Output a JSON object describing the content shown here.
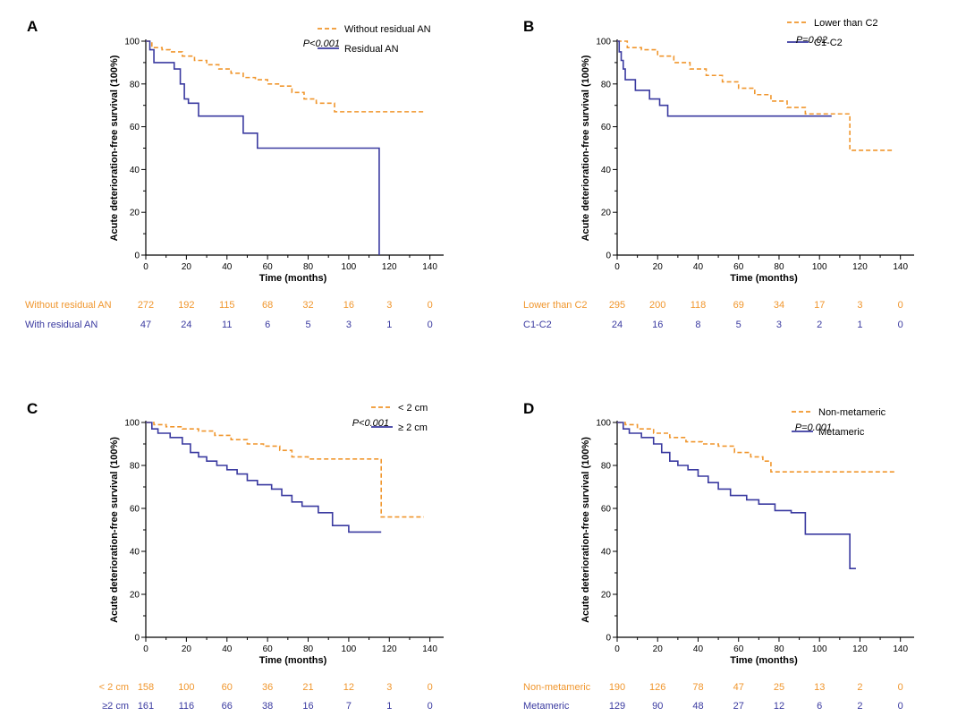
{
  "colors": {
    "orange": "#f0962d",
    "blue": "#3a3aa0",
    "axis": "#000000"
  },
  "chart_data": [
    {
      "panel": "A",
      "type": "line",
      "xlabel": "Time (months)",
      "ylabel": "Acute deterioration-free survival (100%)",
      "xlim": [
        0,
        145
      ],
      "ylim": [
        0,
        100
      ],
      "xticks": [
        0,
        20,
        40,
        60,
        80,
        100,
        120,
        140
      ],
      "yticks": [
        0,
        20,
        40,
        60,
        80,
        100
      ],
      "pvalue": "P<0.001",
      "series": [
        {
          "name": "Without residual AN",
          "color": "#f0962d",
          "dashed": true,
          "x": [
            0,
            3,
            8,
            12,
            18,
            24,
            30,
            36,
            42,
            48,
            54,
            60,
            66,
            72,
            78,
            84,
            93,
            100,
            137
          ],
          "y": [
            100,
            97,
            96,
            95,
            93,
            91,
            89,
            87,
            85,
            83,
            82,
            80,
            79,
            76,
            73,
            71,
            67,
            67,
            67
          ]
        },
        {
          "name": "Residual AN",
          "color": "#3a3aa0",
          "dashed": false,
          "x": [
            0,
            2,
            4,
            14,
            17,
            19,
            21,
            26,
            48,
            55,
            115,
            115
          ],
          "y": [
            100,
            96,
            90,
            87,
            80,
            73,
            71,
            65,
            57,
            50,
            50,
            0
          ]
        }
      ],
      "risk_table": [
        {
          "label": "Without residual AN",
          "color": "#f0962d",
          "values": [
            "272",
            "192",
            "115",
            "68",
            "32",
            "16",
            "3",
            "0"
          ]
        },
        {
          "label": "With residual AN",
          "color": "#3a3aa0",
          "values": [
            "47",
            "24",
            "11",
            "6",
            "5",
            "3",
            "1",
            "0"
          ]
        }
      ]
    },
    {
      "panel": "B",
      "type": "line",
      "xlabel": "Time (months)",
      "ylabel": "Acute deterioration-free survival (100%)",
      "xlim": [
        0,
        145
      ],
      "ylim": [
        0,
        100
      ],
      "xticks": [
        0,
        20,
        40,
        60,
        80,
        100,
        120,
        140
      ],
      "yticks": [
        0,
        20,
        40,
        60,
        80,
        100
      ],
      "pvalue": "P=0.02",
      "series": [
        {
          "name": "Lower than C2",
          "color": "#f0962d",
          "dashed": true,
          "x": [
            0,
            5,
            12,
            20,
            28,
            36,
            44,
            52,
            60,
            68,
            76,
            84,
            93,
            100,
            115,
            115,
            137
          ],
          "y": [
            100,
            97,
            96,
            93,
            90,
            87,
            84,
            81,
            78,
            75,
            72,
            69,
            66,
            66,
            66,
            49,
            49
          ]
        },
        {
          "name": "C1-C2",
          "color": "#3a3aa0",
          "dashed": false,
          "x": [
            0,
            1,
            2,
            3,
            4,
            9,
            16,
            21,
            25,
            106
          ],
          "y": [
            100,
            95,
            91,
            87,
            82,
            77,
            73,
            70,
            65,
            65
          ]
        }
      ],
      "risk_table": [
        {
          "label": "Lower than C2",
          "color": "#f0962d",
          "values": [
            "295",
            "200",
            "118",
            "69",
            "34",
            "17",
            "3",
            "0"
          ]
        },
        {
          "label": "C1-C2",
          "color": "#3a3aa0",
          "values": [
            "24",
            "16",
            "8",
            "5",
            "3",
            "2",
            "1",
            "0"
          ]
        }
      ]
    },
    {
      "panel": "C",
      "type": "line",
      "xlabel": "Time (months)",
      "ylabel": "Acute deterioration-free survival (100%)",
      "xlim": [
        0,
        145
      ],
      "ylim": [
        0,
        100
      ],
      "xticks": [
        0,
        20,
        40,
        60,
        80,
        100,
        120,
        140
      ],
      "yticks": [
        0,
        20,
        40,
        60,
        80,
        100
      ],
      "pvalue": "P<0.001",
      "series": [
        {
          "name": "< 2 cm",
          "color": "#f0962d",
          "dashed": true,
          "x": [
            0,
            4,
            10,
            18,
            26,
            34,
            42,
            50,
            58,
            66,
            72,
            80,
            115,
            116,
            137
          ],
          "y": [
            100,
            99,
            98,
            97,
            96,
            94,
            92,
            90,
            89,
            87,
            84,
            83,
            83,
            56,
            56
          ]
        },
        {
          "name": "≥ 2 cm",
          "color": "#3a3aa0",
          "dashed": false,
          "x": [
            0,
            3,
            6,
            12,
            18,
            22,
            26,
            30,
            35,
            40,
            45,
            50,
            55,
            62,
            67,
            72,
            77,
            85,
            92,
            100,
            116
          ],
          "y": [
            100,
            97,
            95,
            93,
            90,
            86,
            84,
            82,
            80,
            78,
            76,
            73,
            71,
            69,
            66,
            63,
            61,
            58,
            52,
            49,
            49
          ]
        }
      ],
      "risk_table": [
        {
          "label": "< 2 cm",
          "color": "#f0962d",
          "values": [
            "158",
            "100",
            "60",
            "36",
            "21",
            "12",
            "3",
            "0"
          ]
        },
        {
          "label": "≥2 cm",
          "color": "#3a3aa0",
          "values": [
            "161",
            "116",
            "66",
            "38",
            "16",
            "7",
            "1",
            "0"
          ]
        }
      ]
    },
    {
      "panel": "D",
      "type": "line",
      "xlabel": "Time (months)",
      "ylabel": "Acute deterioration-free survival (100%)",
      "xlim": [
        0,
        145
      ],
      "ylim": [
        0,
        100
      ],
      "xticks": [
        0,
        20,
        40,
        60,
        80,
        100,
        120,
        140
      ],
      "yticks": [
        0,
        20,
        40,
        60,
        80,
        100
      ],
      "xtick_labels": [
        "0",
        "20",
        "40",
        "60",
        "80",
        "100",
        "120",
        "140"
      ],
      "pvalue": "P=0.001",
      "series": [
        {
          "name": "Non-metameric",
          "color": "#f0962d",
          "dashed": true,
          "x": [
            0,
            4,
            10,
            18,
            26,
            34,
            42,
            50,
            58,
            66,
            72,
            76,
            100,
            137
          ],
          "y": [
            100,
            99,
            97,
            95,
            93,
            91,
            90,
            89,
            86,
            84,
            82,
            77,
            77,
            77
          ]
        },
        {
          "name": "Metameric",
          "color": "#3a3aa0",
          "dashed": false,
          "x": [
            0,
            3,
            6,
            12,
            18,
            22,
            26,
            30,
            35,
            40,
            45,
            50,
            56,
            64,
            70,
            78,
            86,
            93,
            100,
            115,
            115,
            118
          ],
          "y": [
            100,
            97,
            95,
            93,
            90,
            86,
            82,
            80,
            78,
            75,
            72,
            69,
            66,
            64,
            62,
            59,
            58,
            48,
            48,
            48,
            32,
            32
          ]
        }
      ],
      "risk_table": [
        {
          "label": "Non-metameric",
          "color": "#f0962d",
          "values": [
            "190",
            "126",
            "78",
            "47",
            "25",
            "13",
            "2",
            "0"
          ]
        },
        {
          "label": "Metameric",
          "color": "#3a3aa0",
          "values": [
            "129",
            "90",
            "48",
            "27",
            "12",
            "6",
            "2",
            "0"
          ]
        }
      ]
    }
  ]
}
